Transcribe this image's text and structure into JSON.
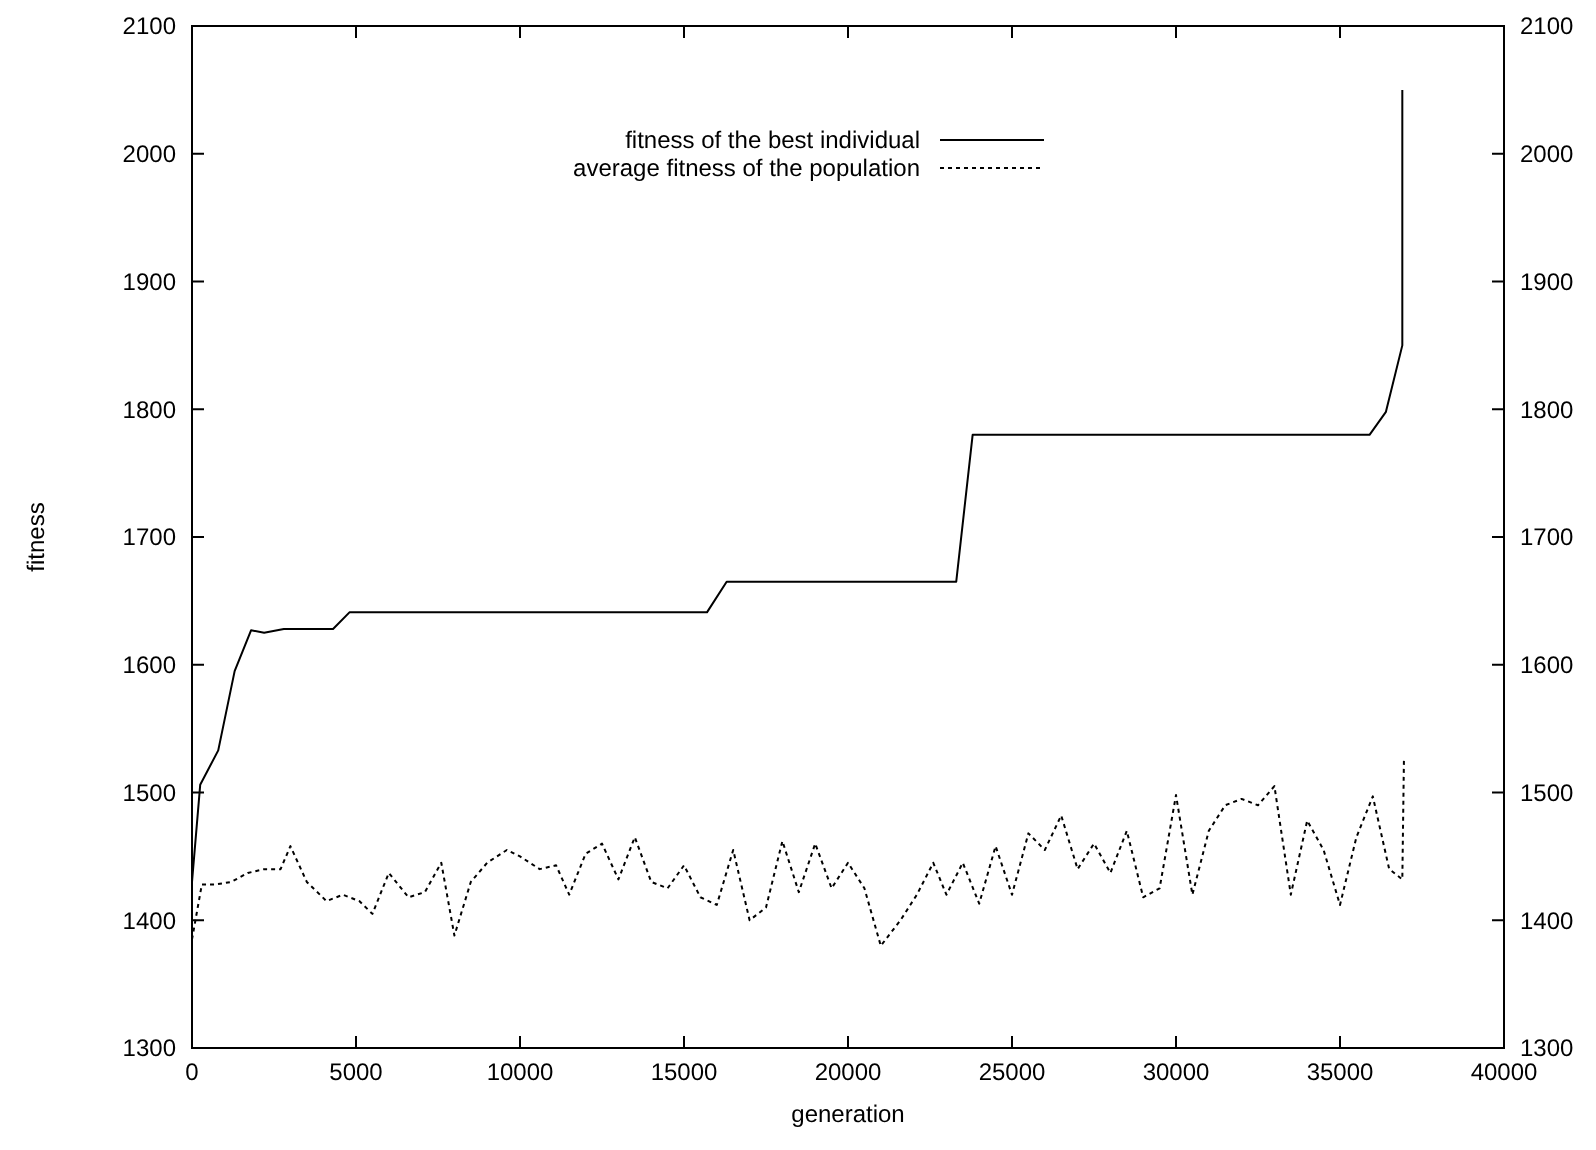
{
  "chart_data": {
    "type": "line",
    "xlabel": "generation",
    "ylabel": "fitness",
    "xlim": [
      0,
      40000
    ],
    "xticks": [
      0,
      5000,
      10000,
      15000,
      20000,
      25000,
      30000,
      35000,
      40000
    ],
    "ylim": [
      1300,
      2100
    ],
    "yticks": [
      1300,
      1400,
      1500,
      1600,
      1700,
      1800,
      1900,
      2000,
      2100
    ],
    "y2lim": [
      1300,
      2100
    ],
    "y2ticks": [
      1300,
      1400,
      1500,
      1600,
      1700,
      1800,
      1900,
      2000,
      2100
    ],
    "grid": false,
    "legend": "top left",
    "series": [
      {
        "name": "fitness of the best individual",
        "color": "#000000",
        "line_style": "solid",
        "x": [
          0,
          250,
          800,
          1300,
          1800,
          2200,
          2800,
          4300,
          4800,
          15700,
          16300,
          23300,
          23800,
          35900,
          36400,
          36900,
          36900
        ],
        "values": [
          1430,
          1506,
          1533,
          1595,
          1627,
          1625,
          1628,
          1628,
          1641,
          1641,
          1665,
          1665,
          1780,
          1780,
          1798,
          1850,
          2050
        ]
      },
      {
        "name": "average fitness of the population",
        "color": "#000000",
        "line_style": "dotted",
        "x": [
          0,
          300,
          700,
          1200,
          1700,
          2200,
          2700,
          3000,
          3500,
          4100,
          4600,
          5100,
          5500,
          6000,
          6600,
          7100,
          7600,
          8000,
          8500,
          9000,
          9600,
          10000,
          10600,
          11100,
          11500,
          12000,
          12500,
          13000,
          13500,
          14000,
          14500,
          15000,
          15500,
          16000,
          16500,
          17000,
          17500,
          18000,
          18500,
          19000,
          19500,
          20000,
          20500,
          21000,
          21600,
          22100,
          22600,
          23000,
          23500,
          24000,
          24500,
          25000,
          25500,
          26000,
          26500,
          27000,
          27500,
          28000,
          28500,
          29000,
          29500,
          30000,
          30500,
          31000,
          31500,
          32000,
          32500,
          33000,
          33500,
          34000,
          34500,
          35000,
          35500,
          36000,
          36500,
          36900,
          36950
        ],
        "values": [
          1385,
          1428,
          1428,
          1430,
          1437,
          1440,
          1440,
          1458,
          1430,
          1415,
          1420,
          1415,
          1405,
          1437,
          1418,
          1422,
          1445,
          1388,
          1430,
          1445,
          1455,
          1450,
          1440,
          1443,
          1420,
          1452,
          1460,
          1432,
          1465,
          1430,
          1425,
          1443,
          1418,
          1412,
          1455,
          1400,
          1410,
          1462,
          1422,
          1460,
          1425,
          1445,
          1425,
          1380,
          1400,
          1420,
          1445,
          1420,
          1445,
          1413,
          1458,
          1420,
          1468,
          1455,
          1482,
          1440,
          1460,
          1437,
          1470,
          1418,
          1425,
          1498,
          1420,
          1470,
          1490,
          1495,
          1490,
          1505,
          1420,
          1478,
          1455,
          1412,
          1465,
          1497,
          1440,
          1432,
          1527
        ]
      }
    ]
  }
}
